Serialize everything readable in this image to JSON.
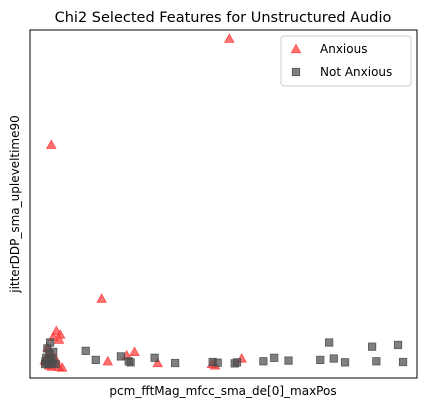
{
  "chart_data": {
    "type": "scatter",
    "title": "Chi2 Selected Features for Unstructured Audio",
    "xlabel": "pcm_fftMag_mfcc_sma_de[0]_maxPos",
    "ylabel": "jitterDDP_sma_upleveltime90",
    "xlim": [
      0,
      100
    ],
    "ylim": [
      0,
      100
    ],
    "x_ticks_shown": false,
    "y_ticks_shown": false,
    "grid": false,
    "legend_position": "top-right",
    "series": [
      {
        "name": "Anxious",
        "marker": "triangle",
        "color": "#ff3b3b",
        "points": [
          [
            51.5,
            97.5
          ],
          [
            5.5,
            67.0
          ],
          [
            18.5,
            22.8
          ],
          [
            6.8,
            13.5
          ],
          [
            7.8,
            12.5
          ],
          [
            7.5,
            11.0
          ],
          [
            6.0,
            11.8
          ],
          [
            27.0,
            7.5
          ],
          [
            25.0,
            6.5
          ],
          [
            4.5,
            8.8
          ],
          [
            5.2,
            7.6
          ],
          [
            4.6,
            6.3
          ],
          [
            6.6,
            5.5
          ],
          [
            3.8,
            5.0
          ],
          [
            4.3,
            4.5
          ],
          [
            5.4,
            4.6
          ],
          [
            6.2,
            4.0
          ],
          [
            4.9,
            3.6
          ],
          [
            5.6,
            3.3
          ],
          [
            7.5,
            3.2
          ],
          [
            8.3,
            3.0
          ],
          [
            20.1,
            4.8
          ],
          [
            33.0,
            4.3
          ],
          [
            47.0,
            4.0
          ],
          [
            47.8,
            3.6
          ],
          [
            54.7,
            5.6
          ]
        ]
      },
      {
        "name": "Not Anxious",
        "marker": "square",
        "color": "#4d4d4d",
        "points": [
          [
            5.2,
            10.2
          ],
          [
            4.5,
            8.5
          ],
          [
            5.0,
            7.0
          ],
          [
            6.0,
            7.5
          ],
          [
            4.2,
            5.8
          ],
          [
            5.5,
            5.2
          ],
          [
            4.0,
            4.8
          ],
          [
            6.0,
            5.0
          ],
          [
            4.7,
            4.0
          ],
          [
            5.5,
            4.2
          ],
          [
            6.6,
            4.0
          ],
          [
            3.9,
            4.0
          ],
          [
            14.4,
            7.8
          ],
          [
            17.0,
            5.2
          ],
          [
            23.5,
            6.2
          ],
          [
            26.0,
            4.5
          ],
          [
            25.5,
            4.8
          ],
          [
            32.2,
            5.8
          ],
          [
            37.5,
            4.3
          ],
          [
            47.2,
            4.6
          ],
          [
            48.5,
            4.4
          ],
          [
            52.9,
            4.2
          ],
          [
            53.5,
            4.5
          ],
          [
            60.3,
            4.8
          ],
          [
            63.1,
            5.8
          ],
          [
            66.8,
            5.0
          ],
          [
            75.0,
            5.2
          ],
          [
            77.3,
            10.2
          ],
          [
            78.5,
            5.6
          ],
          [
            81.4,
            4.5
          ],
          [
            88.4,
            9.0
          ],
          [
            89.5,
            4.8
          ],
          [
            95.1,
            9.5
          ],
          [
            96.4,
            4.6
          ]
        ]
      }
    ]
  }
}
